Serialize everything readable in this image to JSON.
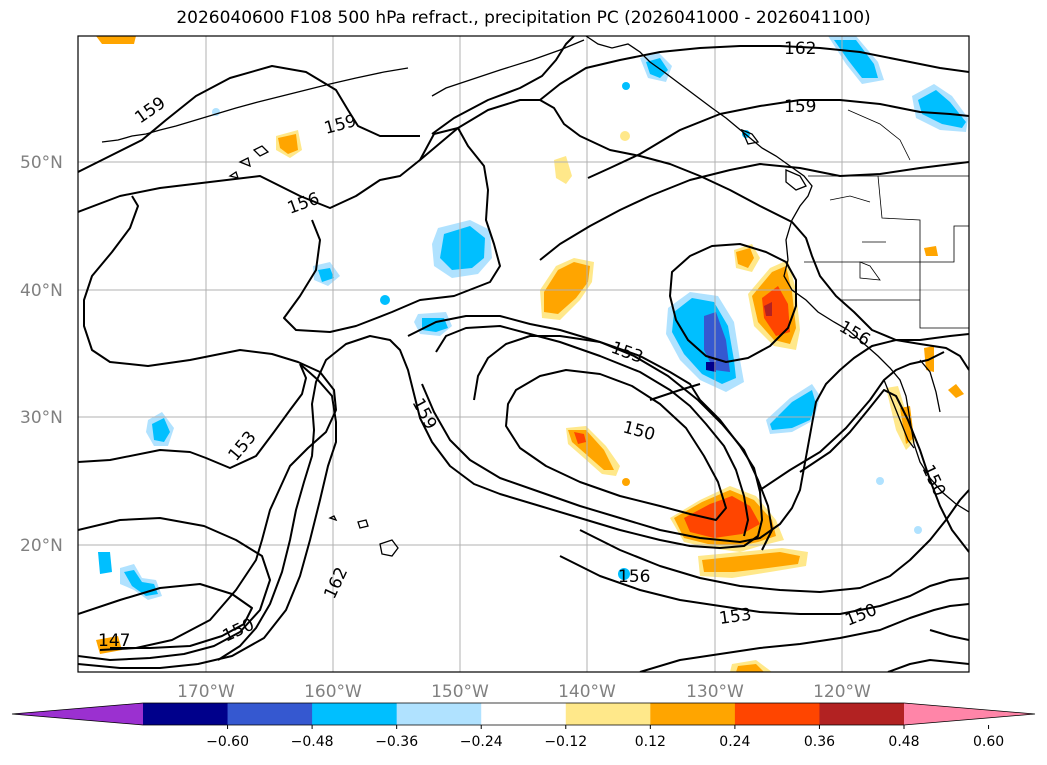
{
  "title": "2026040600 F108 500 hPa refract., precipitation PC (2026041000 - 2026041100)",
  "lat_labels": [
    "50°N",
    "40°N",
    "30°N",
    "20°N"
  ],
  "lon_labels": [
    "170°W",
    "160°W",
    "150°W",
    "140°W",
    "130°W",
    "120°W"
  ],
  "contour_labels": [
    "162",
    "159",
    "159",
    "159",
    "156",
    "156",
    "156",
    "153",
    "153",
    "153",
    "150",
    "150",
    "150",
    "150",
    "159",
    "162",
    "147"
  ],
  "colorbar": {
    "ticks": [
      "−0.60",
      "−0.48",
      "−0.36",
      "−0.24",
      "−0.12",
      "0.12",
      "0.24",
      "0.36",
      "0.48",
      "0.60"
    ],
    "colors": [
      "#9b30d0",
      "#00008b",
      "#3558d0",
      "#00bfff",
      "#b0e2ff",
      "#ffffff",
      "#ffe88a",
      "#ffa500",
      "#ff4500",
      "#b22222",
      "#ff85a8"
    ]
  },
  "colors": {
    "contour": "#000000",
    "gridline": "#b0b0b0",
    "coastline": "#000000"
  }
}
